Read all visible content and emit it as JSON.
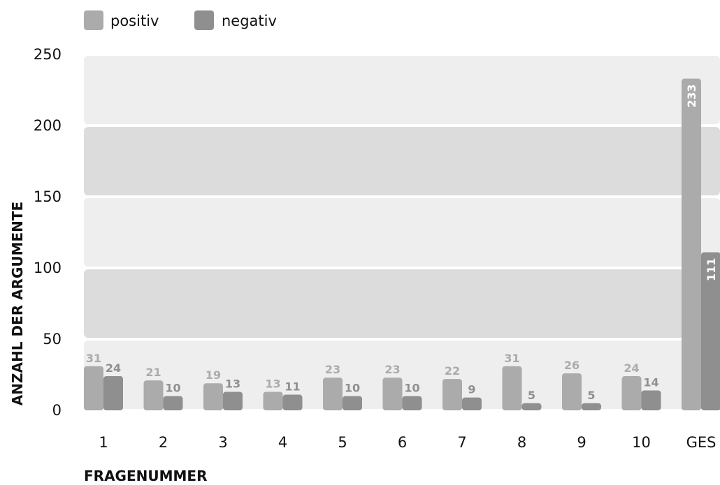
{
  "chart_data": {
    "type": "bar",
    "categories": [
      "1",
      "2",
      "3",
      "4",
      "5",
      "6",
      "7",
      "8",
      "9",
      "10",
      "GES"
    ],
    "series": [
      {
        "name": "positiv",
        "values": [
          31,
          21,
          19,
          13,
          23,
          23,
          22,
          31,
          26,
          24,
          233
        ]
      },
      {
        "name": "negativ",
        "values": [
          24,
          10,
          13,
          11,
          10,
          10,
          9,
          5,
          5,
          14,
          111
        ]
      }
    ],
    "xlabel": "FRAGENUMMER",
    "ylabel": "ANZAHL DER ARGUMENTE",
    "ylim": [
      0,
      250
    ],
    "yticks": [
      0,
      50,
      100,
      150,
      200,
      250
    ],
    "legend_position": "top-left",
    "grid": "alternating horizontal bands",
    "colors": {
      "positiv": "#ababab",
      "negativ": "#8f8f8f",
      "band_light": "#eeeeee",
      "band_dark": "#dcdcdc"
    }
  }
}
